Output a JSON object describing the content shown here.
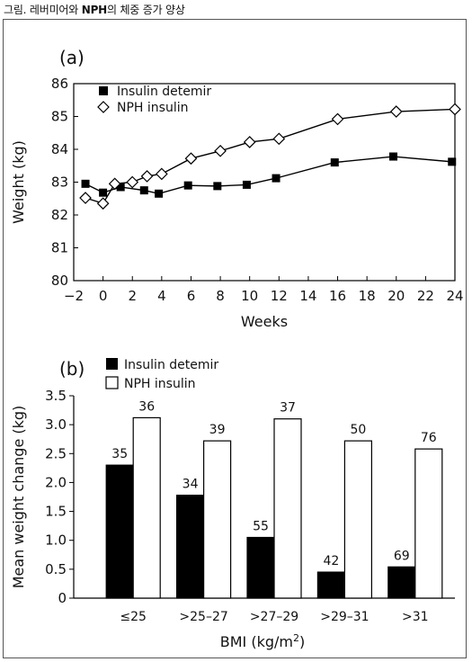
{
  "caption": {
    "prefix": "그림. 레버미어와 ",
    "bold": "NPH",
    "suffix": "의 체중 증가 양상"
  },
  "chart_data": [
    {
      "type": "line",
      "panel_label": "(a)",
      "xlabel": "Weeks",
      "ylabel": "Weight (kg)",
      "xlim": [
        -2,
        24
      ],
      "ylim": [
        80,
        86
      ],
      "xticks": [
        "−2",
        "0",
        "2",
        "4",
        "6",
        "8",
        "10",
        "12",
        "14",
        "16",
        "18",
        "20",
        "22",
        "24"
      ],
      "yticks": [
        "80",
        "81",
        "82",
        "83",
        "84",
        "85",
        "86"
      ],
      "grid": false,
      "legend": "top-left",
      "series": [
        {
          "name": "Insulin detemir",
          "marker": "filled-square",
          "color": "#000000",
          "x": [
            -1.2,
            0,
            1.2,
            2.8,
            3.8,
            5.8,
            7.8,
            9.8,
            11.8,
            15.8,
            19.8,
            23.8
          ],
          "y": [
            82.95,
            82.68,
            82.85,
            82.75,
            82.65,
            82.9,
            82.88,
            82.92,
            83.12,
            83.6,
            83.78,
            83.62
          ]
        },
        {
          "name": "NPH insulin",
          "marker": "open-diamond",
          "color": "#000000",
          "x": [
            -1.2,
            0,
            0.8,
            2,
            3,
            4,
            6,
            8,
            10,
            12,
            16,
            20,
            24
          ],
          "y": [
            82.52,
            82.35,
            82.95,
            83.0,
            83.18,
            83.25,
            83.72,
            83.95,
            84.22,
            84.32,
            84.92,
            85.15,
            85.22
          ]
        }
      ]
    },
    {
      "type": "bar",
      "panel_label": "(b)",
      "xlabel": "BMI (kg/m",
      "xlabel_sup": "2",
      "xlabel_end": ")",
      "ylabel": "Mean weight change (kg)",
      "ylim": [
        0,
        3.5
      ],
      "yticks": [
        "0",
        "0.5",
        "1.0",
        "1.5",
        "2.0",
        "2.5",
        "3.0",
        "3.5"
      ],
      "categories": [
        "≤25",
        ">25–27",
        ">27–29",
        ">29–31",
        ">31"
      ],
      "grid": false,
      "legend": "top-left",
      "series": [
        {
          "name": "Insulin detemir",
          "fill": "#000000",
          "values": [
            2.3,
            1.78,
            1.05,
            0.45,
            0.54
          ],
          "data_labels": [
            "35",
            "34",
            "55",
            "42",
            "69"
          ]
        },
        {
          "name": "NPH insulin",
          "fill": "#ffffff",
          "values": [
            3.12,
            2.72,
            3.1,
            2.72,
            2.58
          ],
          "data_labels": [
            "36",
            "39",
            "37",
            "50",
            "76"
          ]
        }
      ]
    }
  ]
}
